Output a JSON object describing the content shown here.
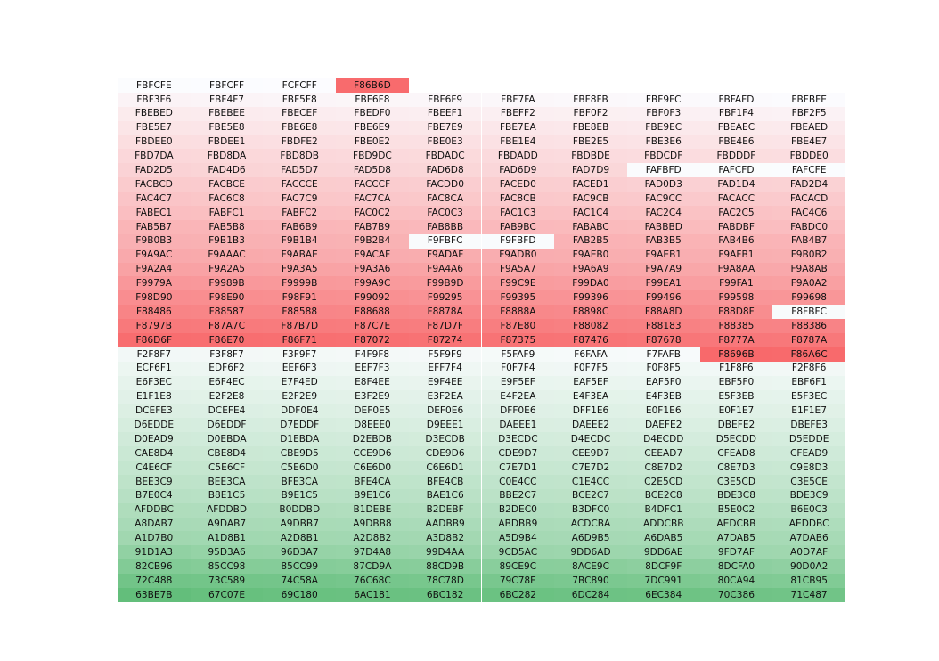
{
  "rows": [
    [
      "FBFCFE",
      "FBFCFF",
      "FCFCFF",
      "F86B6D"
    ],
    [
      "FBF3F6",
      "FBF4F7",
      "FBF5F8",
      "FBF6F8",
      "FBF6F9",
      "FBF7FA",
      "FBF8FB",
      "FBF9FC",
      "FBFAFD",
      "FBFBFE"
    ],
    [
      "FBEBED",
      "FBEBEE",
      "FBECEF",
      "FBEDF0",
      "FBEEF1",
      "FBEFF2",
      "FBF0F2",
      "FBF0F3",
      "FBF1F4",
      "FBF2F5"
    ],
    [
      "FBE5E7",
      "FBE5E8",
      "FBE6E8",
      "FBE6E9",
      "FBE7E9",
      "FBE7EA",
      "FBE8EB",
      "FBE9EC",
      "FBEAEC",
      "FBEAED"
    ],
    [
      "FBDEE0",
      "FBDEE1",
      "FBDFE2",
      "FBE0E2",
      "FBE0E3",
      "FBE1E4",
      "FBE2E5",
      "FBE3E6",
      "FBE4E6",
      "FBE4E7"
    ],
    [
      "FBD7DA",
      "FBD8DA",
      "FBD8DB",
      "FBD9DC",
      "FBDADC",
      "FBDADD",
      "FBDBDE",
      "FBDCDF",
      "FBDDDF",
      "FBDDE0"
    ],
    [
      "FAD2D5",
      "FAD4D6",
      "FAD5D7",
      "FAD5D8",
      "FAD6D8",
      "FAD6D9",
      "FAD7D9",
      "FAFBFD",
      "FAFCFD",
      "FAFCFE"
    ],
    [
      "FACBCD",
      "FACBCE",
      "FACCCE",
      "FACCCF",
      "FACDD0",
      "FACED0",
      "FACED1",
      "FAD0D3",
      "FAD1D4",
      "FAD2D4"
    ],
    [
      "FAC4C7",
      "FAC6C8",
      "FAC7C9",
      "FAC7CA",
      "FAC8CA",
      "FAC8CB",
      "FAC9CB",
      "FAC9CC",
      "FACACC",
      "FACACD"
    ],
    [
      "FABEC1",
      "FABFC1",
      "FABFC2",
      "FAC0C2",
      "FAC0C3",
      "FAC1C3",
      "FAC1C4",
      "FAC2C4",
      "FAC2C5",
      "FAC4C6"
    ],
    [
      "FAB5B7",
      "FAB5B8",
      "FAB6B9",
      "FAB7B9",
      "FAB8BB",
      "FAB9BC",
      "FABABC",
      "FABBBD",
      "FABDBF",
      "FABDC0"
    ],
    [
      "F9B0B3",
      "F9B1B3",
      "F9B1B4",
      "F9B2B4",
      "F9FBFC",
      "F9FBFD",
      "FAB2B5",
      "FAB3B5",
      "FAB4B6",
      "FAB4B7"
    ],
    [
      "F9A9AC",
      "F9AAAC",
      "F9ABAE",
      "F9ACAF",
      "F9ADAF",
      "F9ADB0",
      "F9AEB0",
      "F9AEB1",
      "F9AFB1",
      "F9B0B2"
    ],
    [
      "F9A2A4",
      "F9A2A5",
      "F9A3A5",
      "F9A3A6",
      "F9A4A6",
      "F9A5A7",
      "F9A6A9",
      "F9A7A9",
      "F9A8AA",
      "F9A8AB"
    ],
    [
      "F9979A",
      "F9989B",
      "F9999B",
      "F99A9C",
      "F99B9D",
      "F99C9E",
      "F99DA0",
      "F99EA1",
      "F99FA1",
      "F9A0A2"
    ],
    [
      "F98D90",
      "F98E90",
      "F98F91",
      "F99092",
      "F99295",
      "F99395",
      "F99396",
      "F99496",
      "F99598",
      "F99698"
    ],
    [
      "F88486",
      "F88587",
      "F88588",
      "F88688",
      "F8878A",
      "F8888A",
      "F8898C",
      "F88A8D",
      "F88D8F",
      "F8FBFC"
    ],
    [
      "F8797B",
      "F87A7C",
      "F87B7D",
      "F87C7E",
      "F87D7F",
      "F87E80",
      "F88082",
      "F88183",
      "F88385",
      "F88386"
    ],
    [
      "F86D6F",
      "F86E70",
      "F86F71",
      "F87072",
      "F87274",
      "F87375",
      "F87476",
      "F87678",
      "F8777A",
      "F8787A"
    ],
    [
      "F2F8F7",
      "F3F8F7",
      "F3F9F7",
      "F4F9F8",
      "F5F9F9",
      "F5FAF9",
      "F6FAFA",
      "F7FAFB",
      "F8696B",
      "F86A6C"
    ],
    [
      "ECF6F1",
      "EDF6F2",
      "EEF6F3",
      "EEF7F3",
      "EFF7F4",
      "F0F7F4",
      "F0F7F5",
      "F0F8F5",
      "F1F8F6",
      "F2F8F6"
    ],
    [
      "E6F3EC",
      "E6F4EC",
      "E7F4ED",
      "E8F4EE",
      "E9F4EE",
      "E9F5EF",
      "EAF5EF",
      "EAF5F0",
      "EBF5F0",
      "EBF6F1"
    ],
    [
      "E1F1E8",
      "E2F2E8",
      "E2F2E9",
      "E3F2E9",
      "E3F2EA",
      "E4F2EA",
      "E4F3EA",
      "E4F3EB",
      "E5F3EB",
      "E5F3EC"
    ],
    [
      "DCEFE3",
      "DCEFE4",
      "DDF0E4",
      "DEF0E5",
      "DEF0E6",
      "DFF0E6",
      "DFF1E6",
      "E0F1E6",
      "E0F1E7",
      "E1F1E7"
    ],
    [
      "D6EDDE",
      "D6EDDF",
      "D7EDDF",
      "D8EEE0",
      "D9EEE1",
      "DAEEE1",
      "DAEEE2",
      "DAEFE2",
      "DBEFE2",
      "DBEFE3"
    ],
    [
      "D0EAD9",
      "D0EBDA",
      "D1EBDA",
      "D2EBDB",
      "D3ECDB",
      "D3ECDC",
      "D4ECDC",
      "D4ECDD",
      "D5ECDD",
      "D5EDDE"
    ],
    [
      "CAE8D4",
      "CBE8D4",
      "CBE9D5",
      "CCE9D6",
      "CDE9D6",
      "CDE9D7",
      "CEE9D7",
      "CEEAD7",
      "CFEAD8",
      "CFEAD9"
    ],
    [
      "C4E6CF",
      "C5E6CF",
      "C5E6D0",
      "C6E6D0",
      "C6E6D1",
      "C7E7D1",
      "C7E7D2",
      "C8E7D2",
      "C8E7D3",
      "C9E8D3"
    ],
    [
      "BEE3C9",
      "BEE3CA",
      "BFE3CA",
      "BFE4CA",
      "BFE4CB",
      "C0E4CC",
      "C1E4CC",
      "C2E5CD",
      "C3E5CD",
      "C3E5CE"
    ],
    [
      "B7E0C4",
      "B8E1C5",
      "B9E1C5",
      "B9E1C6",
      "BAE1C6",
      "BBE2C7",
      "BCE2C7",
      "BCE2C8",
      "BDE3C8",
      "BDE3C9"
    ],
    [
      "AFDDBC",
      "AFDDBD",
      "B0DDBD",
      "B1DEBE",
      "B2DEBF",
      "B2DEC0",
      "B3DFC0",
      "B4DFC1",
      "B5E0C2",
      "B6E0C3"
    ],
    [
      "A8DAB7",
      "A9DAB7",
      "A9DBB7",
      "A9DBB8",
      "AADBB9",
      "ABDBB9",
      "ACDCBA",
      "ADDCBB",
      "AEDCBB",
      "AEDDBC"
    ],
    [
      "A1D7B0",
      "A1D8B1",
      "A2D8B1",
      "A2D8B2",
      "A3D8B2",
      "A5D9B4",
      "A6D9B5",
      "A6DAB5",
      "A7DAB5",
      "A7DAB6"
    ],
    [
      "91D1A3",
      "95D3A6",
      "96D3A7",
      "97D4A8",
      "99D4AA",
      "9CD5AC",
      "9DD6AD",
      "9DD6AE",
      "9FD7AF",
      "A0D7AF"
    ],
    [
      "82CB96",
      "85CC98",
      "85CC99",
      "87CD9A",
      "88CD9B",
      "89CE9C",
      "8ACE9C",
      "8DCF9F",
      "8DCFA0",
      "90D0A2"
    ],
    [
      "72C488",
      "73C589",
      "74C58A",
      "76C68C",
      "78C78D",
      "79C78E",
      "7BC890",
      "7DC991",
      "80CA94",
      "81CB95"
    ],
    [
      "63BE7B",
      "67C07E",
      "69C180",
      "6AC181",
      "6BC182",
      "6BC282",
      "6DC284",
      "6EC384",
      "70C386",
      "71C487"
    ]
  ]
}
